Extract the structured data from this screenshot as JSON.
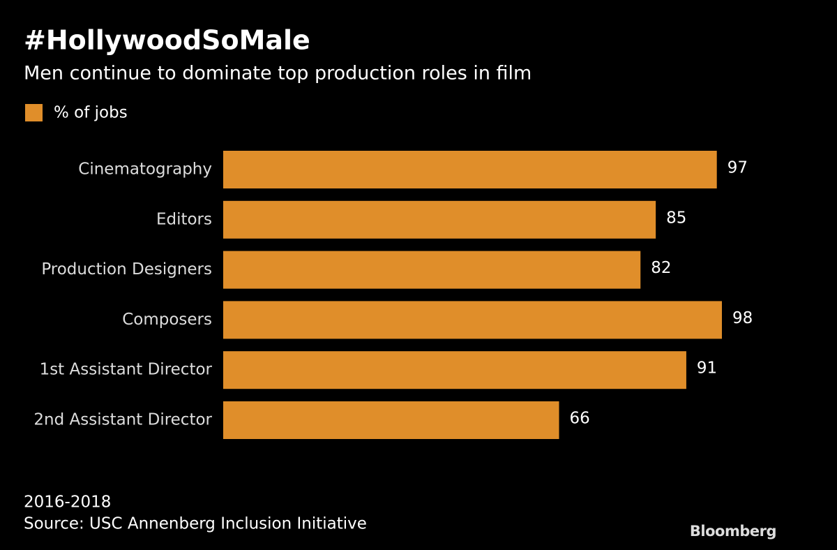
{
  "chart_data": {
    "type": "bar",
    "orientation": "horizontal",
    "title": "#HollywoodSoMale",
    "subtitle": "Men continue to dominate top production roles in film",
    "categories": [
      "Cinematography",
      "Editors",
      "Production Designers",
      "Composers",
      "1st Assistant Director",
      "2nd Assistant Director"
    ],
    "series": [
      {
        "name": "% of jobs",
        "color": "#e08e2a",
        "values": [
          97,
          85,
          82,
          98,
          91,
          66
        ]
      }
    ],
    "period": "2016-2018",
    "source": "Source: USC Annenberg Inclusion Initiative",
    "brand": "Bloomberg"
  }
}
